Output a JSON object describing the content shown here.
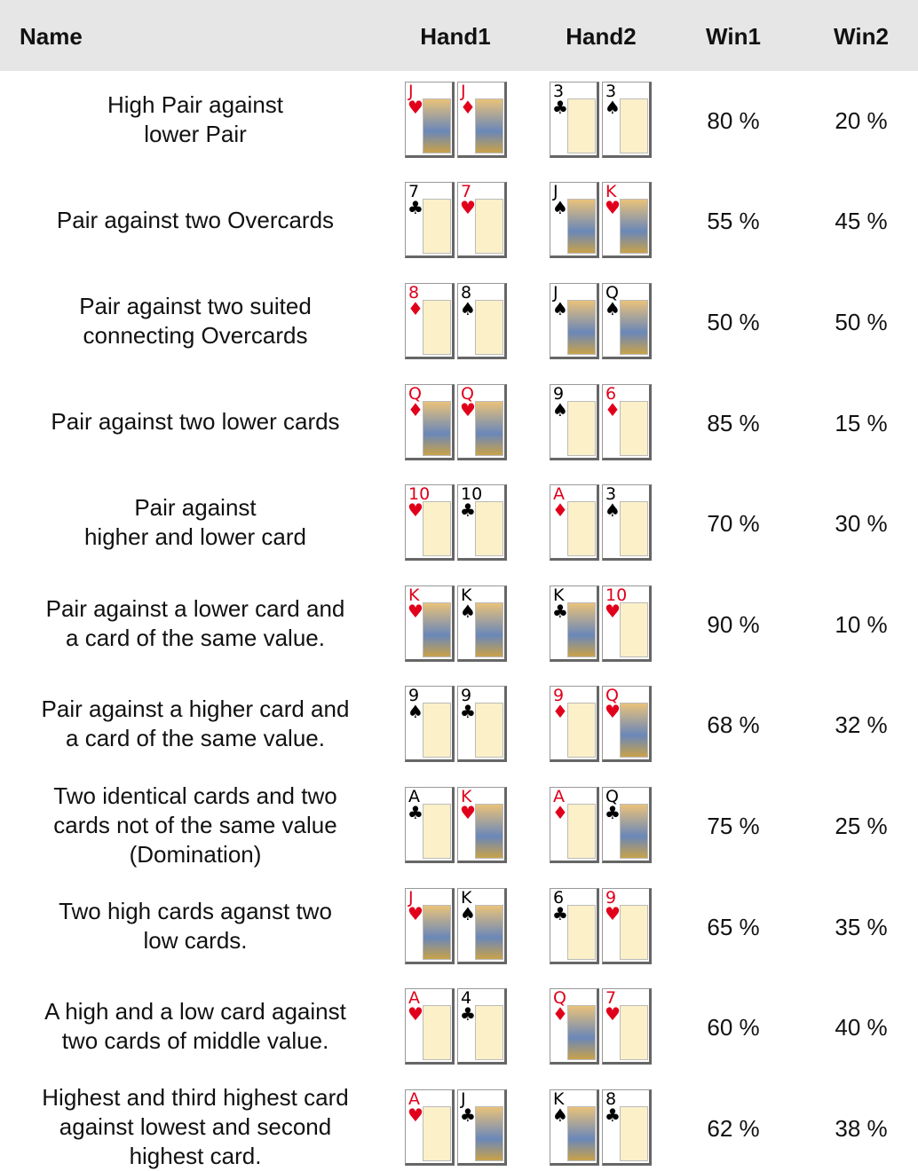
{
  "table": {
    "header": [
      "Name",
      "Hand1",
      "Hand2",
      "Win1",
      "Win2"
    ],
    "rows": [
      {
        "name": [
          "High Pair against",
          "lower Pair"
        ],
        "hand1": [
          {
            "rank": "J",
            "suit": "♥"
          },
          {
            "rank": "J",
            "suit": "♦"
          }
        ],
        "hand2": [
          {
            "rank": "3",
            "suit": "♣"
          },
          {
            "rank": "3",
            "suit": "♠"
          }
        ],
        "win1": "80 %",
        "win2": "20 %"
      },
      {
        "name": [
          "Pair against two Overcards"
        ],
        "hand1": [
          {
            "rank": "7",
            "suit": "♣"
          },
          {
            "rank": "7",
            "suit": "♥"
          }
        ],
        "hand2": [
          {
            "rank": "J",
            "suit": "♠"
          },
          {
            "rank": "K",
            "suit": "♥"
          }
        ],
        "win1": "55 %",
        "win2": "45 %"
      },
      {
        "name": [
          "Pair against two suited",
          "connecting Overcards"
        ],
        "hand1": [
          {
            "rank": "8",
            "suit": "♦"
          },
          {
            "rank": "8",
            "suit": "♠"
          }
        ],
        "hand2": [
          {
            "rank": "J",
            "suit": "♠"
          },
          {
            "rank": "Q",
            "suit": "♠"
          }
        ],
        "win1": "50 %",
        "win2": "50 %"
      },
      {
        "name": [
          "Pair against two lower cards"
        ],
        "hand1": [
          {
            "rank": "Q",
            "suit": "♦"
          },
          {
            "rank": "Q",
            "suit": "♥"
          }
        ],
        "hand2": [
          {
            "rank": "9",
            "suit": "♠"
          },
          {
            "rank": "6",
            "suit": "♦"
          }
        ],
        "win1": "85 %",
        "win2": "15 %"
      },
      {
        "name": [
          "Pair against",
          "higher and lower card"
        ],
        "hand1": [
          {
            "rank": "10",
            "suit": "♥"
          },
          {
            "rank": "10",
            "suit": "♣"
          }
        ],
        "hand2": [
          {
            "rank": "A",
            "suit": "♦"
          },
          {
            "rank": "3",
            "suit": "♠"
          }
        ],
        "win1": "70 %",
        "win2": "30 %"
      },
      {
        "name": [
          "Pair against a lower card and",
          "a card of the same value."
        ],
        "hand1": [
          {
            "rank": "K",
            "suit": "♥"
          },
          {
            "rank": "K",
            "suit": "♠"
          }
        ],
        "hand2": [
          {
            "rank": "K",
            "suit": "♣"
          },
          {
            "rank": "10",
            "suit": "♥"
          }
        ],
        "win1": "90 %",
        "win2": "10 %"
      },
      {
        "name": [
          "Pair against a higher card and",
          "a card of the same value."
        ],
        "hand1": [
          {
            "rank": "9",
            "suit": "♠"
          },
          {
            "rank": "9",
            "suit": "♣"
          }
        ],
        "hand2": [
          {
            "rank": "9",
            "suit": "♦"
          },
          {
            "rank": "Q",
            "suit": "♥"
          }
        ],
        "win1": "68 %",
        "win2": "32 %"
      },
      {
        "name": [
          "Two identical cards and two",
          "cards not of the same value",
          "(Domination)"
        ],
        "hand1": [
          {
            "rank": "A",
            "suit": "♣"
          },
          {
            "rank": "K",
            "suit": "♥"
          }
        ],
        "hand2": [
          {
            "rank": "A",
            "suit": "♦"
          },
          {
            "rank": "Q",
            "suit": "♣"
          }
        ],
        "win1": "75 %",
        "win2": "25 %"
      },
      {
        "name": [
          "Two high cards aganst two",
          "low cards."
        ],
        "hand1": [
          {
            "rank": "J",
            "suit": "♥"
          },
          {
            "rank": "K",
            "suit": "♠"
          }
        ],
        "hand2": [
          {
            "rank": "6",
            "suit": "♣"
          },
          {
            "rank": "9",
            "suit": "♥"
          }
        ],
        "win1": "65 %",
        "win2": "35 %"
      },
      {
        "name": [
          "A high and a low card against",
          "two cards of middle value."
        ],
        "hand1": [
          {
            "rank": "A",
            "suit": "♥"
          },
          {
            "rank": "4",
            "suit": "♣"
          }
        ],
        "hand2": [
          {
            "rank": "Q",
            "suit": "♦"
          },
          {
            "rank": "7",
            "suit": "♥"
          }
        ],
        "win1": "60 %",
        "win2": "40 %"
      },
      {
        "name": [
          "Highest and third highest card",
          "against lowest and second",
          "highest card."
        ],
        "hand1": [
          {
            "rank": "A",
            "suit": "♥"
          },
          {
            "rank": "J",
            "suit": "♣"
          }
        ],
        "hand2": [
          {
            "rank": "K",
            "suit": "♠"
          },
          {
            "rank": "8",
            "suit": "♣"
          }
        ],
        "win1": "62 %",
        "win2": "38 %"
      }
    ]
  }
}
